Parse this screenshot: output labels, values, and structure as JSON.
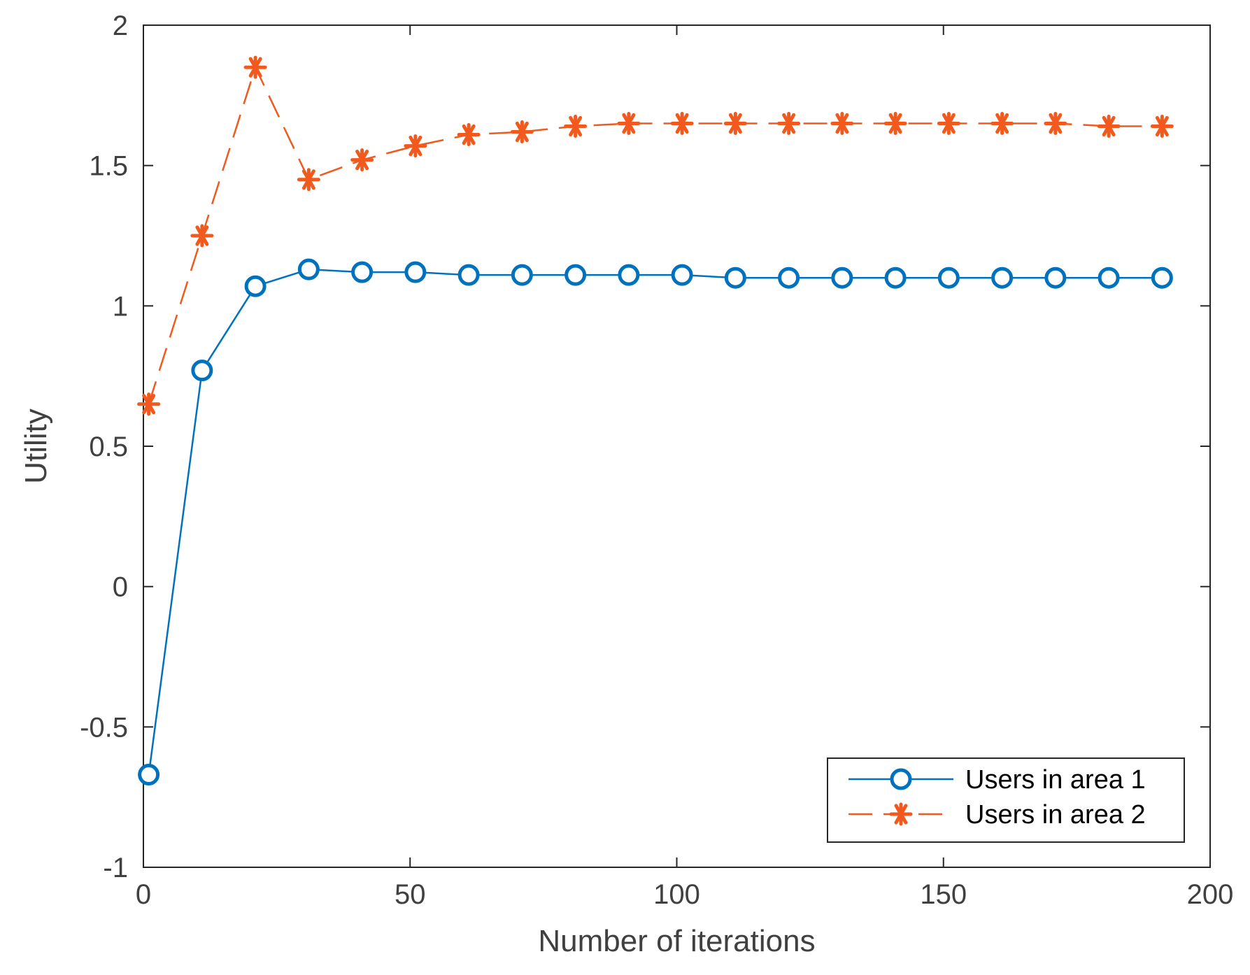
{
  "chart_data": {
    "type": "line",
    "title": "",
    "xlabel": "Number of iterations",
    "ylabel": "Utility",
    "xlim": [
      0,
      200
    ],
    "ylim": [
      -1,
      2
    ],
    "xticks": [
      0,
      50,
      100,
      150,
      200
    ],
    "yticks": [
      -1,
      -0.5,
      0,
      0.5,
      1,
      1.5,
      2
    ],
    "xtick_labels": [
      "0",
      "50",
      "100",
      "150",
      "200"
    ],
    "ytick_labels": [
      "-1",
      "-0.5",
      "0",
      "0.5",
      "1",
      "1.5",
      "2"
    ],
    "grid": false,
    "legend_position": "bottom-right",
    "x": [
      1,
      11,
      21,
      31,
      41,
      51,
      61,
      71,
      81,
      91,
      101,
      111,
      121,
      131,
      141,
      151,
      161,
      171,
      181,
      191
    ],
    "series": [
      {
        "name": "Users in area 1",
        "color": "#0072BD",
        "marker": "circle",
        "line_style": "solid",
        "values": [
          -0.67,
          0.77,
          1.07,
          1.13,
          1.12,
          1.12,
          1.11,
          1.11,
          1.11,
          1.11,
          1.11,
          1.1,
          1.1,
          1.1,
          1.1,
          1.1,
          1.1,
          1.1,
          1.1,
          1.1
        ]
      },
      {
        "name": "Users in area 2",
        "color": "#F05A1E",
        "marker": "asterisk",
        "line_style": "dashed",
        "values": [
          0.65,
          1.25,
          1.85,
          1.45,
          1.52,
          1.57,
          1.61,
          1.62,
          1.64,
          1.65,
          1.65,
          1.65,
          1.65,
          1.65,
          1.65,
          1.65,
          1.65,
          1.65,
          1.64,
          1.64
        ]
      }
    ]
  }
}
